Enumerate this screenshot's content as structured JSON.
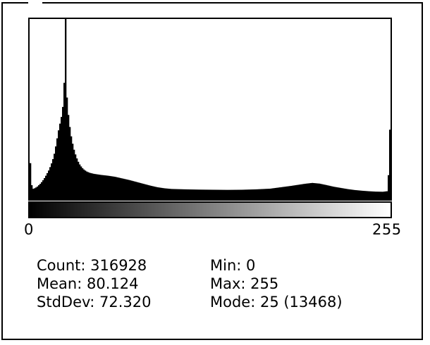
{
  "chart_data": {
    "type": "area",
    "bins": 256,
    "x_range": [
      0,
      255
    ],
    "x_tick_labels": [
      "0",
      "255"
    ],
    "peak_value": 13468,
    "series": [
      {
        "values_by_bin": [
          [
            0,
            2700
          ],
          [
            1,
            1050
          ],
          [
            2,
            780
          ],
          [
            3,
            820
          ],
          [
            4,
            880
          ],
          [
            5,
            950
          ],
          [
            6,
            1050
          ],
          [
            7,
            1150
          ],
          [
            8,
            1280
          ],
          [
            9,
            1420
          ],
          [
            10,
            1580
          ],
          [
            11,
            1760
          ],
          [
            12,
            1950
          ],
          [
            13,
            2150
          ],
          [
            14,
            2400
          ],
          [
            15,
            2680
          ],
          [
            16,
            3000
          ],
          [
            17,
            3400
          ],
          [
            18,
            3950
          ],
          [
            19,
            4550
          ],
          [
            20,
            5150
          ],
          [
            21,
            5650
          ],
          [
            22,
            6150
          ],
          [
            23,
            6900
          ],
          [
            24,
            8700
          ],
          [
            25,
            13468
          ],
          [
            26,
            7600
          ],
          [
            27,
            6300
          ],
          [
            28,
            5400
          ],
          [
            29,
            4700
          ],
          [
            30,
            4150
          ],
          [
            31,
            3700
          ],
          [
            32,
            3350
          ],
          [
            33,
            3050
          ],
          [
            34,
            2800
          ],
          [
            35,
            2600
          ],
          [
            36,
            2450
          ],
          [
            37,
            2320
          ],
          [
            38,
            2220
          ],
          [
            39,
            2140
          ],
          [
            40,
            2070
          ],
          [
            42,
            1980
          ],
          [
            45,
            1900
          ],
          [
            50,
            1820
          ],
          [
            55,
            1760
          ],
          [
            60,
            1680
          ],
          [
            65,
            1560
          ],
          [
            70,
            1440
          ],
          [
            75,
            1300
          ],
          [
            80,
            1160
          ],
          [
            85,
            1020
          ],
          [
            90,
            900
          ],
          [
            95,
            820
          ],
          [
            100,
            770
          ],
          [
            110,
            740
          ],
          [
            120,
            720
          ],
          [
            130,
            710
          ],
          [
            140,
            700
          ],
          [
            150,
            710
          ],
          [
            160,
            740
          ],
          [
            170,
            790
          ],
          [
            175,
            860
          ],
          [
            180,
            930
          ],
          [
            185,
            1000
          ],
          [
            190,
            1080
          ],
          [
            195,
            1160
          ],
          [
            200,
            1220
          ],
          [
            205,
            1170
          ],
          [
            210,
            1060
          ],
          [
            215,
            940
          ],
          [
            220,
            850
          ],
          [
            225,
            760
          ],
          [
            230,
            690
          ],
          [
            235,
            640
          ],
          [
            240,
            600
          ],
          [
            245,
            570
          ],
          [
            250,
            560
          ],
          [
            253,
            600
          ],
          [
            254,
            1800
          ],
          [
            255,
            5200
          ]
        ]
      }
    ],
    "colors": {
      "bars": "#000000",
      "background": "#ffffff",
      "gradient_start": "#000000",
      "gradient_end": "#ffffff"
    }
  },
  "stats": {
    "count": "Count: 316928",
    "mean": "Mean: 80.124",
    "stddev": "StdDev: 72.320",
    "min": "Min: 0",
    "max": "Max: 255",
    "mode": "Mode: 25 (13468)"
  }
}
